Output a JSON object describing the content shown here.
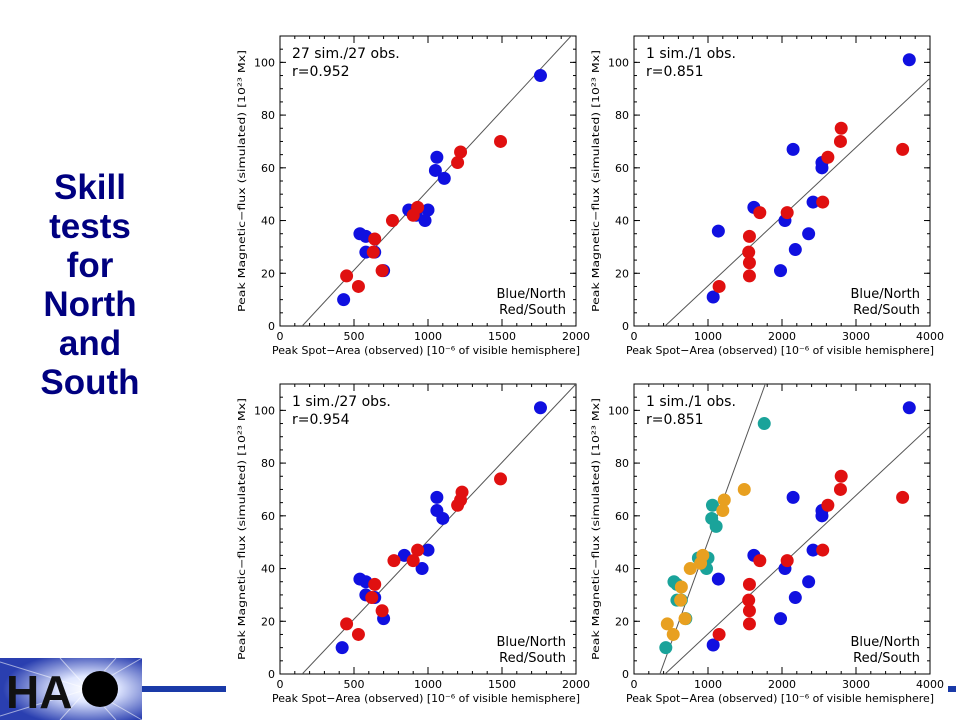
{
  "title_lines": [
    "Skill",
    "tests",
    "for",
    "North",
    "and",
    "South"
  ],
  "logo": {
    "text": "HA"
  },
  "colors": {
    "blue": "#1010e0",
    "red": "#e01010",
    "teal": "#1aa39a",
    "orange": "#e8a020",
    "title": "#000080"
  },
  "chart_data": [
    {
      "type": "scatter",
      "annotation_line1": "27 sim./27 obs.",
      "annotation_line2": "r=0.952",
      "legend_line1": "Blue/North",
      "legend_line2": "Red/South",
      "xlabel": "Peak Spot−Area (observed) [10⁻⁶ of visible hemisphere]",
      "ylabel": "Peak Magnetic−flux (simulated) [10²³ Mx]",
      "xlim": [
        0,
        2000
      ],
      "ylim": [
        0,
        110
      ],
      "xticks": [
        "0",
        "500",
        "1000",
        "1500",
        "2000"
      ],
      "yticks": [
        "0",
        "20",
        "40",
        "60",
        "80",
        "100"
      ],
      "fit_lines": [
        [
          [
            150,
            0
          ],
          [
            2000,
            112
          ]
        ]
      ],
      "series": [
        {
          "color": "#1010e0",
          "points": [
            [
              1760,
              95
            ],
            [
              1060,
              64
            ],
            [
              1110,
              56
            ],
            [
              1050,
              59
            ],
            [
              1000,
              44
            ],
            [
              980,
              40
            ],
            [
              870,
              44
            ],
            [
              920,
              42
            ],
            [
              540,
              35
            ],
            [
              580,
              34
            ],
            [
              580,
              28
            ],
            [
              640,
              28
            ],
            [
              700,
              21
            ],
            [
              430,
              10
            ]
          ]
        },
        {
          "color": "#e01010",
          "points": [
            [
              1490,
              70
            ],
            [
              1220,
              66
            ],
            [
              1200,
              62
            ],
            [
              900,
              42
            ],
            [
              930,
              45
            ],
            [
              760,
              40
            ],
            [
              640,
              33
            ],
            [
              630,
              28
            ],
            [
              690,
              21
            ],
            [
              450,
              19
            ],
            [
              530,
              15
            ]
          ]
        }
      ]
    },
    {
      "type": "scatter",
      "annotation_line1": "1 sim./1 obs.",
      "annotation_line2": "r=0.851",
      "legend_line1": "Blue/North",
      "legend_line2": "Red/South",
      "xlabel": "Peak Spot−Area (observed) [10⁻⁶ of visible hemisphere]",
      "ylabel": "Peak Magnetic−flux (simulated) [10²³ Mx]",
      "xlim": [
        0,
        4000
      ],
      "ylim": [
        0,
        110
      ],
      "xticks": [
        "0",
        "1000",
        "2000",
        "3000",
        "4000"
      ],
      "yticks": [
        "0",
        "20",
        "40",
        "60",
        "80",
        "100"
      ],
      "fit_lines": [
        [
          [
            420,
            0
          ],
          [
            4000,
            94
          ]
        ]
      ],
      "series": [
        {
          "color": "#1010e0",
          "points": [
            [
              3720,
              101
            ],
            [
              2150,
              67
            ],
            [
              2540,
              60
            ],
            [
              2540,
              62
            ],
            [
              2420,
              47
            ],
            [
              2040,
              40
            ],
            [
              2180,
              29
            ],
            [
              2360,
              35
            ],
            [
              1980,
              21
            ],
            [
              1620,
              45
            ],
            [
              1140,
              36
            ],
            [
              1070,
              11
            ]
          ]
        },
        {
          "color": "#e01010",
          "points": [
            [
              2800,
              75
            ],
            [
              2790,
              70
            ],
            [
              3630,
              67
            ],
            [
              2620,
              64
            ],
            [
              2550,
              47
            ],
            [
              2070,
              43
            ],
            [
              1700,
              43
            ],
            [
              1560,
              34
            ],
            [
              1550,
              28
            ],
            [
              1560,
              24
            ],
            [
              1560,
              19
            ],
            [
              1150,
              15
            ]
          ]
        }
      ]
    },
    {
      "type": "scatter",
      "annotation_line1": "1 sim./27 obs.",
      "annotation_line2": "r=0.954",
      "legend_line1": "Blue/North",
      "legend_line2": "Red/South",
      "xlabel": "Peak Spot−Area (observed) [10⁻⁶ of visible hemisphere]",
      "ylabel": "Peak Magnetic−flux (simulated) [10²³ Mx]",
      "xlim": [
        0,
        2000
      ],
      "ylim": [
        0,
        110
      ],
      "xticks": [
        "0",
        "500",
        "1000",
        "1500",
        "2000"
      ],
      "yticks": [
        "0",
        "20",
        "40",
        "60",
        "80",
        "100"
      ],
      "fit_lines": [
        [
          [
            150,
            0
          ],
          [
            2000,
            110
          ]
        ]
      ],
      "series": [
        {
          "color": "#1010e0",
          "points": [
            [
              1760,
              101
            ],
            [
              1060,
              67
            ],
            [
              1060,
              62
            ],
            [
              1100,
              59
            ],
            [
              1000,
              47
            ],
            [
              960,
              40
            ],
            [
              840,
              45
            ],
            [
              540,
              36
            ],
            [
              580,
              35
            ],
            [
              580,
              30
            ],
            [
              640,
              29
            ],
            [
              700,
              21
            ],
            [
              420,
              10
            ]
          ]
        },
        {
          "color": "#e01010",
          "points": [
            [
              1490,
              74
            ],
            [
              1230,
              69
            ],
            [
              1220,
              66
            ],
            [
              1200,
              64
            ],
            [
              930,
              47
            ],
            [
              900,
              43
            ],
            [
              770,
              43
            ],
            [
              640,
              34
            ],
            [
              620,
              29
            ],
            [
              690,
              24
            ],
            [
              450,
              19
            ],
            [
              530,
              15
            ]
          ]
        }
      ]
    },
    {
      "type": "scatter",
      "annotation_line1": "1 sim./1 obs.",
      "annotation_line2": "r=0.851",
      "legend_line1": "Blue/North",
      "legend_line2": "Red/South",
      "xlabel": "Peak Spot−Area (observed) [10⁻⁶ of visible hemisphere]",
      "ylabel": "Peak Magnetic−flux (simulated) [10²³ Mx]",
      "xlim": [
        0,
        4000
      ],
      "ylim": [
        0,
        110
      ],
      "xticks": [
        "0",
        "1000",
        "2000",
        "3000",
        "4000"
      ],
      "yticks": [
        "0",
        "20",
        "40",
        "60",
        "80",
        "100"
      ],
      "fit_lines": [
        [
          [
            420,
            0
          ],
          [
            4000,
            94
          ]
        ],
        [
          [
            350,
            0
          ],
          [
            1800,
            112
          ]
        ]
      ],
      "series": [
        {
          "color": "#1010e0",
          "points": [
            [
              3720,
              101
            ],
            [
              2150,
              67
            ],
            [
              2540,
              60
            ],
            [
              2540,
              62
            ],
            [
              2420,
              47
            ],
            [
              2040,
              40
            ],
            [
              2180,
              29
            ],
            [
              2360,
              35
            ],
            [
              1980,
              21
            ],
            [
              1620,
              45
            ],
            [
              1140,
              36
            ],
            [
              1070,
              11
            ]
          ]
        },
        {
          "color": "#e01010",
          "points": [
            [
              2800,
              75
            ],
            [
              2790,
              70
            ],
            [
              3630,
              67
            ],
            [
              2620,
              64
            ],
            [
              2550,
              47
            ],
            [
              2070,
              43
            ],
            [
              1700,
              43
            ],
            [
              1560,
              34
            ],
            [
              1550,
              28
            ],
            [
              1560,
              24
            ],
            [
              1560,
              19
            ],
            [
              1150,
              15
            ]
          ]
        },
        {
          "color": "#1aa39a",
          "points": [
            [
              1760,
              95
            ],
            [
              1060,
              64
            ],
            [
              1110,
              56
            ],
            [
              1050,
              59
            ],
            [
              1000,
              44
            ],
            [
              980,
              40
            ],
            [
              870,
              44
            ],
            [
              920,
              42
            ],
            [
              540,
              35
            ],
            [
              580,
              34
            ],
            [
              580,
              28
            ],
            [
              640,
              28
            ],
            [
              700,
              21
            ],
            [
              430,
              10
            ]
          ]
        },
        {
          "color": "#e8a020",
          "points": [
            [
              1490,
              70
            ],
            [
              1220,
              66
            ],
            [
              1200,
              62
            ],
            [
              900,
              42
            ],
            [
              930,
              45
            ],
            [
              760,
              40
            ],
            [
              640,
              33
            ],
            [
              630,
              28
            ],
            [
              690,
              21
            ],
            [
              450,
              19
            ],
            [
              530,
              15
            ]
          ]
        }
      ]
    }
  ]
}
